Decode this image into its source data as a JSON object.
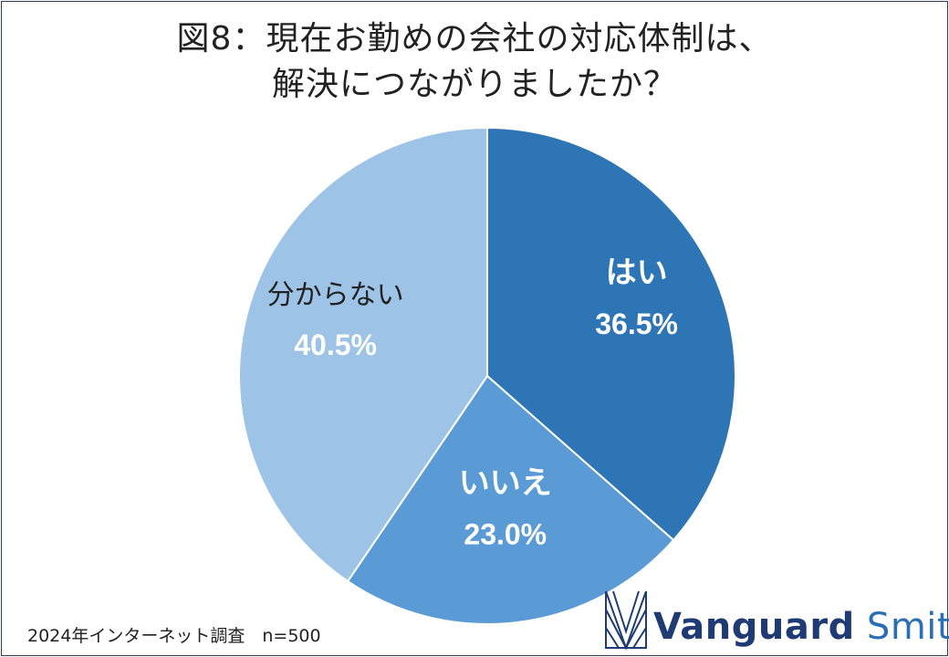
{
  "title": {
    "line1": "図8：現在お勤めの会社の対応体制は、",
    "line2": "解決につながりましたか？"
  },
  "chart_data": {
    "type": "pie",
    "slices": [
      {
        "label": "はい",
        "value": 36.5,
        "display": "36.5%",
        "color": "#2e75b6",
        "text_color": "#ffffff"
      },
      {
        "label": "いいえ",
        "value": 23.0,
        "display": "23.0%",
        "color": "#5b9bd5",
        "text_color": "#ffffff"
      },
      {
        "label": "分からない",
        "value": 40.5,
        "display": "40.5%",
        "color": "#9dc3e6",
        "text_color": "#222222"
      }
    ],
    "start": "12 o'clock",
    "direction": "clockwise"
  },
  "footnote": "2024年インターネット調査　n=500",
  "logo": {
    "name_bold": "Vanguard",
    "name_light": "Smith",
    "colors": {
      "dark": "#1f3b73",
      "light": "#2a6fb5"
    }
  }
}
